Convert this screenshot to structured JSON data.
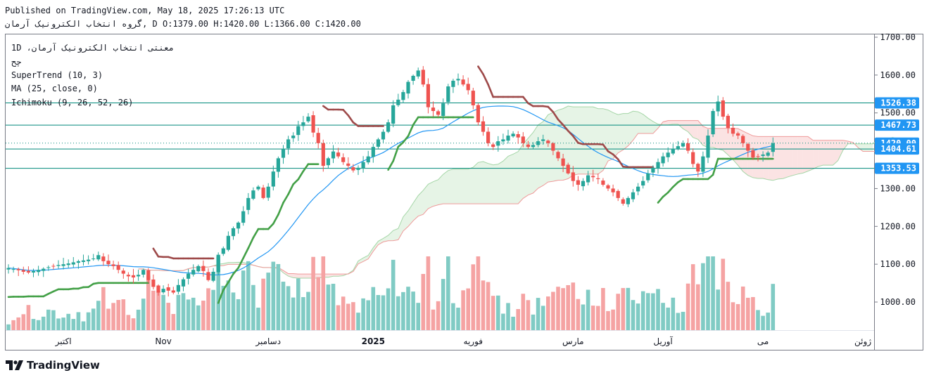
{
  "header": {
    "published": "Published on TradingView.com, May 18, 2025 17:26:13 UTC",
    "symbol_line_prefix": "گروه انتخاب الکترونیک آرمان, D",
    "o_label": "O:",
    "o": "1379.00",
    "h_label": "H:",
    "h": "1420.00",
    "l_label": "L:",
    "l": "1366.00",
    "c_label": "C:",
    "c": "1420.00"
  },
  "legend": {
    "symbol": "1D ،معنتی انتخاب الکترونیک آرمان",
    "sub": "چح",
    "supertrend": "SuperTrend (10, 3)",
    "ma": "MA (25, close, 0)",
    "ichimoku": "Ichimoku (9, 26, 52, 26)"
  },
  "brand": {
    "name": "TradingView",
    "icon": "tradingview-logo-icon"
  },
  "colors": {
    "up": "#26a69a",
    "down": "#ef5350",
    "vol_up": "#80cbc4",
    "vol_down": "#f5a3a3",
    "supertrend_up": "#43a047",
    "supertrend_down": "#9e4a4a",
    "ma": "#2196f3",
    "cloud_green": "#a5d6a7",
    "cloud_red": "#ef9a9a",
    "level_line": "#00897b",
    "label_bg": "#2196f3"
  },
  "chart_data": {
    "type": "candlestick",
    "title": "گروه انتخاب الکترونیک آرمان, D",
    "ylim": [
      955,
      1710
    ],
    "y_ticks": [
      "1700.00",
      "1600.00",
      "1500.00",
      "1400.00",
      "1300.00",
      "1200.00",
      "1100.00",
      "1000.00"
    ],
    "y_tick_values": [
      1700,
      1600,
      1500,
      1400,
      1300,
      1200,
      1100,
      1000
    ],
    "price_labels": [
      {
        "value": 1526.38,
        "text": "1526.38"
      },
      {
        "value": 1467.73,
        "text": "1467.73"
      },
      {
        "value": 1420.0,
        "text": "1420.00"
      },
      {
        "value": 1404.61,
        "text": "1404.61"
      },
      {
        "value": 1353.53,
        "text": "1353.53"
      }
    ],
    "horizontal_levels": [
      1526.38,
      1467.73,
      1404.61,
      1353.53
    ],
    "last_price": 1420.0,
    "x_labels": [
      {
        "text": "اکتبر",
        "bar": 11
      },
      {
        "text": "Nov",
        "bar": 31
      },
      {
        "text": "دسامبر",
        "bar": 52
      },
      {
        "text": "2025",
        "bar": 73,
        "bold": true
      },
      {
        "text": "فوریه",
        "bar": 93
      },
      {
        "text": "مارس",
        "bar": 113
      },
      {
        "text": "آوریل",
        "bar": 131
      },
      {
        "text": "می",
        "bar": 151
      },
      {
        "text": "ژوئن",
        "bar": 171
      }
    ],
    "closes": [
      1090,
      1087,
      1084,
      1080,
      1078,
      1082,
      1085,
      1088,
      1092,
      1095,
      1098,
      1100,
      1102,
      1105,
      1108,
      1110,
      1112,
      1115,
      1124,
      1108,
      1100,
      1095,
      1085,
      1075,
      1068,
      1065,
      1072,
      1085,
      1058,
      1040,
      1025,
      1035,
      1030,
      1025,
      1045,
      1060,
      1075,
      1085,
      1095,
      1082,
      1058,
      1080,
      1125,
      1142,
      1175,
      1195,
      1210,
      1240,
      1275,
      1295,
      1305,
      1275,
      1305,
      1345,
      1380,
      1405,
      1430,
      1440,
      1465,
      1475,
      1490,
      1448,
      1420,
      1360,
      1380,
      1398,
      1385,
      1370,
      1360,
      1348,
      1355,
      1370,
      1385,
      1410,
      1430,
      1450,
      1475,
      1520,
      1535,
      1555,
      1582,
      1598,
      1612,
      1575,
      1515,
      1505,
      1495,
      1525,
      1570,
      1585,
      1590,
      1575,
      1560,
      1520,
      1475,
      1450,
      1420,
      1410,
      1425,
      1430,
      1440,
      1445,
      1435,
      1420,
      1410,
      1415,
      1425,
      1430,
      1420,
      1400,
      1380,
      1360,
      1340,
      1320,
      1310,
      1320,
      1335,
      1330,
      1325,
      1310,
      1300,
      1290,
      1275,
      1260,
      1275,
      1290,
      1305,
      1320,
      1340,
      1355,
      1370,
      1385,
      1395,
      1405,
      1412,
      1420,
      1400,
      1365,
      1345,
      1385,
      1440,
      1505,
      1530,
      1490,
      1460,
      1445,
      1440,
      1420,
      1400,
      1382,
      1385,
      1390,
      1395,
      1420
    ],
    "volume_bull_bear": "computed from closes (up = close >= previous close)",
    "supertrend": {
      "up_color_series": "green (support)",
      "down_color_series": "maroon (resistance)"
    },
    "ma_period": 25,
    "ichimoku": {
      "tenkan": 9,
      "kijun": 26,
      "span_b": 52,
      "displacement": 26
    }
  }
}
